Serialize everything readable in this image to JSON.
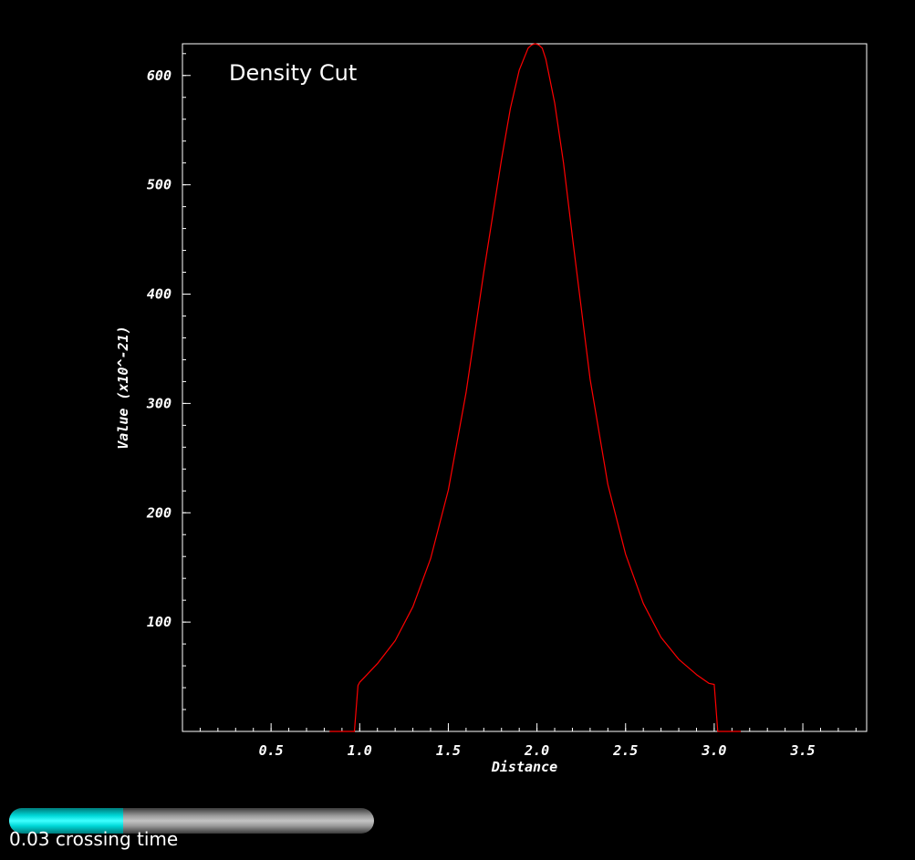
{
  "chart_data": {
    "type": "line",
    "title": "Density Cut",
    "xlabel": "Distance",
    "ylabel": "Value (x10^-21)",
    "xlim": [
      0.0,
      3.86
    ],
    "ylim": [
      0,
      629
    ],
    "xticks": [
      0.5,
      1.0,
      1.5,
      2.0,
      2.5,
      3.0,
      3.5
    ],
    "xtick_labels": [
      "0.5",
      "1.0",
      "1.5",
      "2.0",
      "2.5",
      "3.0",
      "3.5"
    ],
    "yticks": [
      100,
      200,
      300,
      400,
      500,
      600
    ],
    "ytick_labels": [
      "100",
      "200",
      "300",
      "400",
      "500",
      "600"
    ],
    "grid": false,
    "line_color": "#ff0000",
    "series": [
      {
        "x": [
          0.83,
          0.97,
          0.99,
          1.0,
          1.03,
          1.1,
          1.2,
          1.3,
          1.4,
          1.5,
          1.6,
          1.7,
          1.8,
          1.85,
          1.9,
          1.95,
          1.97,
          1.99,
          2.01,
          2.03,
          2.05,
          2.1,
          2.15,
          2.2,
          2.3,
          2.4,
          2.5,
          2.6,
          2.7,
          2.8,
          2.9,
          2.97,
          3.0,
          3.02,
          3.15
        ],
        "y": [
          0,
          0,
          42,
          45,
          50,
          62,
          83,
          114,
          158,
          221,
          310,
          420,
          523,
          570,
          605,
          625,
          628,
          629,
          628,
          625,
          615,
          575,
          520,
          452,
          322,
          226,
          162,
          117,
          86,
          66,
          52,
          44,
          43,
          0,
          0
        ]
      }
    ]
  },
  "progress": {
    "value": 0.3125,
    "label": "0.03 crossing time",
    "fill_color": "#00e5e5",
    "track_color": "#a0a0a0"
  }
}
